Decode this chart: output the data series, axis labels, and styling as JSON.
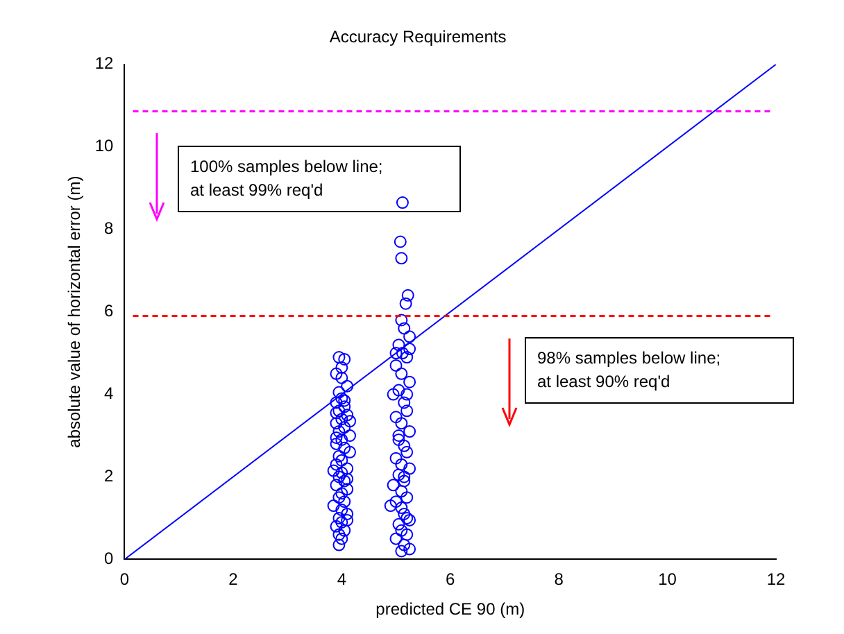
{
  "chart_data": {
    "type": "scatter",
    "title": "Accuracy Requirements",
    "xlabel": "predicted CE 90 (m)",
    "ylabel": "absolute value of horizontal error (m)",
    "xlim": [
      0,
      12
    ],
    "xticks": [
      0,
      2,
      4,
      6,
      8,
      10,
      12
    ],
    "ylim": [
      0,
      12
    ],
    "yticks": [
      0,
      2,
      4,
      6,
      8,
      10,
      12
    ],
    "grid": false,
    "legend": false,
    "marker": "circle",
    "series": [
      {
        "color": "#0000ff",
        "x": [
          3.95,
          4.05,
          3.9,
          4.0,
          4.1,
          3.95,
          4.0,
          3.9,
          4.05,
          3.95,
          4.1,
          4.0,
          3.9,
          4.05,
          3.95,
          4.15,
          4.0,
          3.9,
          4.05,
          4.15,
          3.95,
          4.0,
          3.9,
          4.1,
          4.0,
          3.95,
          4.05,
          3.9,
          4.1,
          4.0,
          3.95,
          4.05,
          3.85,
          4.0,
          4.1,
          3.95,
          4.0,
          3.9,
          4.05,
          3.95,
          4.0,
          3.95,
          4.05,
          3.9,
          4.1,
          4.15,
          3.85,
          4.1,
          4.0,
          3.9
        ],
        "values": [
          4.9,
          4.85,
          4.5,
          4.4,
          4.2,
          4.05,
          3.9,
          3.8,
          3.7,
          3.6,
          3.5,
          3.4,
          3.3,
          3.2,
          3.1,
          3.0,
          2.9,
          2.8,
          2.7,
          2.6,
          2.5,
          2.4,
          2.3,
          2.2,
          2.1,
          2.0,
          1.9,
          1.8,
          1.7,
          1.6,
          1.5,
          1.4,
          1.3,
          1.2,
          1.1,
          1.0,
          0.9,
          0.8,
          0.7,
          0.6,
          0.5,
          0.35,
          3.85,
          2.95,
          1.95,
          3.35,
          2.15,
          0.95,
          4.65,
          3.55
        ]
      },
      {
        "color": "#0000ff",
        "x": [
          5.12,
          5.08,
          5.1,
          5.22,
          5.18,
          5.1,
          5.15,
          5.25,
          5.05,
          5.12,
          5.2,
          5.0,
          5.1,
          5.25,
          5.05,
          4.95,
          5.15,
          5.2,
          5.0,
          5.1,
          5.25,
          5.05,
          5.15,
          5.2,
          5.0,
          5.1,
          5.25,
          5.05,
          5.15,
          4.95,
          5.1,
          5.2,
          5.0,
          5.1,
          4.9,
          5.15,
          5.25,
          5.05,
          5.1,
          5.2,
          5.0,
          5.15,
          5.25,
          5.1,
          5.2,
          5.05,
          5.15,
          5.2,
          5.0,
          5.25
        ],
        "values": [
          8.65,
          7.7,
          7.3,
          6.4,
          6.2,
          5.8,
          5.6,
          5.4,
          5.2,
          5.0,
          4.9,
          4.7,
          4.5,
          4.3,
          4.1,
          4.0,
          3.8,
          3.6,
          3.45,
          3.3,
          3.1,
          2.9,
          2.75,
          2.6,
          2.45,
          2.3,
          2.2,
          2.05,
          1.9,
          1.8,
          1.65,
          1.5,
          1.4,
          1.25,
          1.3,
          1.1,
          0.95,
          0.85,
          0.7,
          0.6,
          0.5,
          0.35,
          0.25,
          0.2,
          4.0,
          3.0,
          2.0,
          1.0,
          5.0,
          5.1
        ]
      },
      {
        "type": "line",
        "marker": "none",
        "color": "#0000ff",
        "x": [
          0,
          12
        ],
        "values": [
          0,
          12
        ]
      }
    ],
    "ref_lines": [
      {
        "axis": "y",
        "value": 10.86,
        "color": "#ff00ff",
        "line_style": "dashed"
      },
      {
        "axis": "y",
        "value": 5.9,
        "color": "#ff0000",
        "line_style": "dashed"
      }
    ],
    "annotations": [
      "100% samples below line;\nat least 99% req'd",
      "98% samples below line;\nat least 90% req'd"
    ]
  }
}
